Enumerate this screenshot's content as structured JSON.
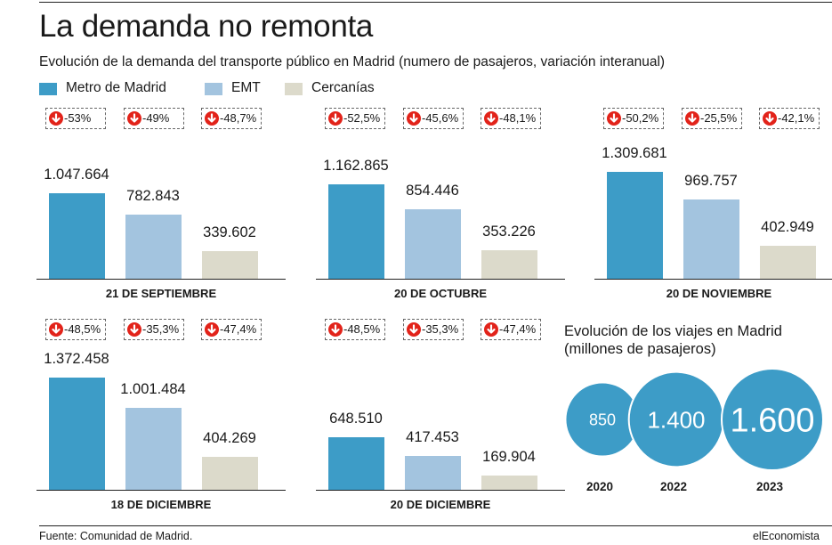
{
  "title": "La demanda no remonta",
  "subtitle": "Evolución de la demanda del transporte público en Madrid (numero de pasajeros, variación interanual)",
  "colors": {
    "metro": "#3d9cc7",
    "emt": "#a3c4df",
    "cercanias": "#dcdacb",
    "down_icon": "#e2231a"
  },
  "chart_data": [
    {
      "type": "bar",
      "title": "21 DE SEPTIEMBRE",
      "series": [
        {
          "name": "Metro de Madrid",
          "value": 1047664,
          "label": "1.047.664",
          "change": "-53%"
        },
        {
          "name": "EMT",
          "value": 782843,
          "label": "782.843",
          "change": "-49%"
        },
        {
          "name": "Cercanías",
          "value": 339602,
          "label": "339.602",
          "change": "-48,7%"
        }
      ]
    },
    {
      "type": "bar",
      "title": "20 DE OCTUBRE",
      "series": [
        {
          "name": "Metro de Madrid",
          "value": 1162865,
          "label": "1.162.865",
          "change": "-52,5%"
        },
        {
          "name": "EMT",
          "value": 854446,
          "label": "854.446",
          "change": "-45,6%"
        },
        {
          "name": "Cercanías",
          "value": 353226,
          "label": "353.226",
          "change": "-48,1%"
        }
      ]
    },
    {
      "type": "bar",
      "title": "20 DE NOVIEMBRE",
      "series": [
        {
          "name": "Metro de Madrid",
          "value": 1309681,
          "label": "1.309.681",
          "change": "-50,2%"
        },
        {
          "name": "EMT",
          "value": 969757,
          "label": "969.757",
          "change": "-25,5%"
        },
        {
          "name": "Cercanías",
          "value": 402949,
          "label": "402.949",
          "change": "-42,1%"
        }
      ]
    },
    {
      "type": "bar",
      "title": "18 DE DICIEMBRE",
      "series": [
        {
          "name": "Metro de Madrid",
          "value": 1372458,
          "label": "1.372.458",
          "change": "-48,5%"
        },
        {
          "name": "EMT",
          "value": 1001484,
          "label": "1.001.484",
          "change": "-35,3%"
        },
        {
          "name": "Cercanías",
          "value": 404269,
          "label": "404.269",
          "change": "-47,4%"
        }
      ]
    },
    {
      "type": "bar",
      "title": "20 DE DICIEMBRE",
      "series": [
        {
          "name": "Metro de Madrid",
          "value": 648510,
          "label": "648.510",
          "change": "-48,5%"
        },
        {
          "name": "EMT",
          "value": 417453,
          "label": "417.453",
          "change": "-35,3%"
        },
        {
          "name": "Cercanías",
          "value": 169904,
          "label": "169.904",
          "change": "-47,4%"
        }
      ]
    },
    {
      "type": "bubble",
      "title": "Evolución de los viajes en Madrid (millones de pasajeros)",
      "categories": [
        "2020",
        "2022",
        "2023"
      ],
      "values": [
        850,
        1400,
        1600
      ],
      "labels": [
        "850",
        "1.400",
        "1.600"
      ]
    }
  ],
  "legend": [
    "Metro de Madrid",
    "EMT",
    "Cercanías"
  ],
  "trips": {
    "title_line1": "Evolución de los viajes en Madrid",
    "title_line2": "(millones de pasajeros)"
  },
  "source": "Fuente: Comunidad de Madrid.",
  "brand": "elEconomista"
}
